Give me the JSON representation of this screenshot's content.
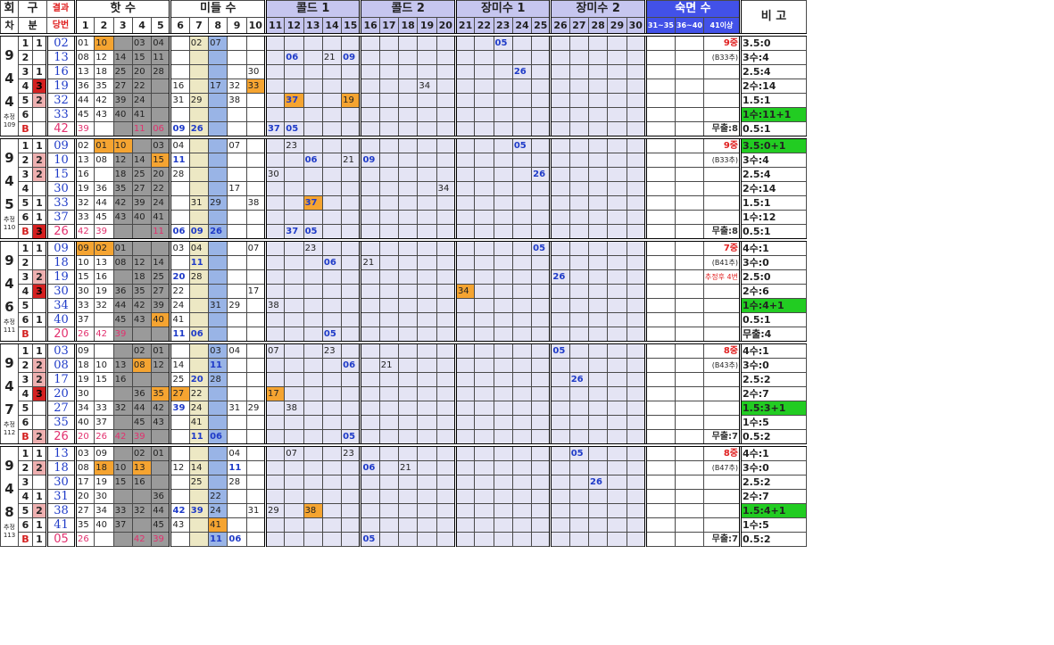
{
  "header": {
    "round": [
      "회",
      "차"
    ],
    "section": [
      "구",
      "분"
    ],
    "result": [
      "결과",
      "당번"
    ],
    "groups": [
      "핫 수",
      "미들 수",
      "콜드 1",
      "콜드 2",
      "장미수 1",
      "장미수 2",
      "숙면 수"
    ],
    "remark": "비 고",
    "cols": [
      "1",
      "2",
      "3",
      "4",
      "5",
      "6",
      "7",
      "8",
      "9",
      "10",
      "11",
      "12",
      "13",
      "14",
      "15",
      "16",
      "17",
      "18",
      "19",
      "20",
      "21",
      "22",
      "23",
      "24",
      "25",
      "26",
      "27",
      "28",
      "29",
      "30",
      "31~35",
      "36~40",
      "41이상"
    ]
  },
  "blocks": [
    {
      "round": [
        "9",
        "4",
        "4"
      ],
      "round_note": [
        "추정",
        "109"
      ],
      "rows": [
        {
          "n": "1",
          "s": "1",
          "a": "02",
          "c": {
            "1": "01",
            "2": "10",
            "4": "03",
            "5": "04",
            "7": "02",
            "8": "07",
            "23": "05"
          },
          "r": "9중",
          "v": "3.5:0"
        },
        {
          "n": "2",
          "s": "",
          "a": "13",
          "c": {
            "1": "08",
            "2": "12",
            "3": "14",
            "4": "15",
            "5": "11",
            "12": "06",
            "14": "21",
            "15": "09"
          },
          "r": "(B33추)",
          "v": "3수:4"
        },
        {
          "n": "3",
          "s": "1",
          "a": "16",
          "c": {
            "1": "13",
            "2": "18",
            "3": "25",
            "4": "20",
            "5": "28",
            "10": "30",
            "24": "26"
          },
          "r": "",
          "v": "2.5:4"
        },
        {
          "n": "4",
          "s": "3",
          "a": "19",
          "c": {
            "1": "36",
            "2": "35",
            "3": "27",
            "4": "22",
            "6": "16",
            "8": "17",
            "9": "32",
            "10": "33",
            "19": "34"
          },
          "r": "",
          "v": "2수:14"
        },
        {
          "n": "5",
          "s": "2",
          "a": "32",
          "c": {
            "1": "44",
            "2": "42",
            "3": "39",
            "4": "24",
            "6": "31",
            "7": "29",
            "9": "38",
            "12": "37",
            "15": "19"
          },
          "r": "",
          "v": "1.5:1"
        },
        {
          "n": "6",
          "s": "",
          "a": "33",
          "c": {
            "1": "45",
            "2": "43",
            "3": "40",
            "4": "41"
          },
          "r": "",
          "v": "1수:11+1"
        },
        {
          "n": "B",
          "s": "",
          "a": "42",
          "c": {
            "1": "39",
            "4": "11",
            "5": "06",
            "6": "09",
            "7": "26",
            "11": "37",
            "12": "05"
          },
          "r": "무출:8",
          "v": "0.5:1"
        }
      ]
    },
    {
      "round": [
        "9",
        "4",
        "5"
      ],
      "round_note": [
        "추정",
        "110"
      ],
      "rows": [
        {
          "n": "1",
          "s": "1",
          "a": "09",
          "c": {
            "1": "02",
            "2": "01",
            "3": "10",
            "5": "03",
            "6": "04",
            "9": "07",
            "12": "23",
            "24": "05"
          },
          "r": "9중",
          "v": "3.5:0+1"
        },
        {
          "n": "2",
          "s": "2",
          "a": "10",
          "c": {
            "1": "13",
            "2": "08",
            "3": "12",
            "4": "14",
            "5": "15",
            "6": "11",
            "13": "06",
            "15": "21",
            "16": "09"
          },
          "r": "(B33추)",
          "v": "3수:4"
        },
        {
          "n": "3",
          "s": "2",
          "a": "15",
          "c": {
            "1": "16",
            "3": "18",
            "4": "25",
            "5": "20",
            "6": "28",
            "11": "30",
            "25": "26"
          },
          "r": "",
          "v": "2.5:4"
        },
        {
          "n": "4",
          "s": "",
          "a": "30",
          "c": {
            "1": "19",
            "2": "36",
            "3": "35",
            "4": "27",
            "5": "22",
            "9": "17",
            "20": "34"
          },
          "r": "",
          "v": "2수:14"
        },
        {
          "n": "5",
          "s": "1",
          "a": "33",
          "c": {
            "1": "32",
            "2": "44",
            "3": "42",
            "4": "39",
            "5": "24",
            "7": "31",
            "8": "29",
            "10": "38",
            "13": "37"
          },
          "r": "",
          "v": "1.5:1"
        },
        {
          "n": "6",
          "s": "1",
          "a": "37",
          "c": {
            "1": "33",
            "2": "45",
            "3": "43",
            "4": "40",
            "5": "41"
          },
          "r": "",
          "v": "1수:12"
        },
        {
          "n": "B",
          "s": "3",
          "a": "26",
          "c": {
            "1": "42",
            "2": "39",
            "5": "11",
            "6": "06",
            "7": "09",
            "8": "26",
            "12": "37",
            "13": "05"
          },
          "r": "무출:8",
          "v": "0.5:1"
        }
      ]
    },
    {
      "round": [
        "9",
        "4",
        "6"
      ],
      "round_note": [
        "추정",
        "111"
      ],
      "rows": [
        {
          "n": "1",
          "s": "1",
          "a": "09",
          "c": {
            "1": "09",
            "2": "02",
            "3": "01",
            "6": "03",
            "7": "04",
            "10": "07",
            "13": "23",
            "25": "05"
          },
          "r": "7중",
          "v": "4수:1"
        },
        {
          "n": "2",
          "s": "",
          "a": "18",
          "c": {
            "1": "10",
            "2": "13",
            "3": "08",
            "4": "12",
            "5": "14",
            "7": "11",
            "14": "06",
            "16": "21"
          },
          "r": "(B41추)",
          "v": "3수:0"
        },
        {
          "n": "3",
          "s": "2",
          "a": "19",
          "c": {
            "1": "15",
            "2": "16",
            "4": "18",
            "5": "25",
            "6": "20",
            "7": "28",
            "26": "26"
          },
          "r": "추정후 4번",
          "v": "2.5:0"
        },
        {
          "n": "4",
          "s": "3",
          "a": "30",
          "c": {
            "1": "30",
            "2": "19",
            "3": "36",
            "4": "35",
            "5": "27",
            "6": "22",
            "10": "17",
            "21": "34"
          },
          "r": "",
          "v": "2수:6"
        },
        {
          "n": "5",
          "s": "",
          "a": "34",
          "c": {
            "1": "33",
            "2": "32",
            "3": "44",
            "4": "42",
            "5": "39",
            "6": "24",
            "8": "31",
            "9": "29",
            "11": "38"
          },
          "r": "",
          "v": "1수:4+1"
        },
        {
          "n": "6",
          "s": "1",
          "a": "40",
          "c": {
            "1": "37",
            "3": "45",
            "4": "43",
            "5": "40",
            "6": "41"
          },
          "r": "",
          "v": "0.5:1"
        },
        {
          "n": "B",
          "s": "",
          "a": "20",
          "c": {
            "1": "26",
            "2": "42",
            "3": "39",
            "6": "11",
            "7": "06",
            "14": "05"
          },
          "r": "",
          "v": "무출:4"
        }
      ]
    },
    {
      "round": [
        "9",
        "4",
        "7"
      ],
      "round_note": [
        "추정",
        "112"
      ],
      "rows": [
        {
          "n": "1",
          "s": "1",
          "a": "03",
          "c": {
            "1": "09",
            "4": "02",
            "5": "01",
            "8": "03",
            "9": "04",
            "11": "07",
            "14": "23",
            "26": "05"
          },
          "r": "8중",
          "v": "4수:1"
        },
        {
          "n": "2",
          "s": "2",
          "a": "08",
          "c": {
            "1": "18",
            "2": "10",
            "3": "13",
            "4": "08",
            "5": "12",
            "6": "14",
            "8": "11",
            "15": "06",
            "17": "21"
          },
          "r": "(B43추)",
          "v": "3수:0"
        },
        {
          "n": "3",
          "s": "2",
          "a": "17",
          "c": {
            "1": "19",
            "2": "15",
            "3": "16",
            "6": "25",
            "7": "20",
            "8": "28",
            "27": "26"
          },
          "r": "",
          "v": "2.5:2"
        },
        {
          "n": "4",
          "s": "3",
          "a": "20",
          "c": {
            "1": "30",
            "4": "36",
            "5": "35",
            "6": "27",
            "7": "22",
            "11": "17"
          },
          "r": "",
          "v": "2수:7"
        },
        {
          "n": "5",
          "s": "",
          "a": "27",
          "c": {
            "1": "34",
            "2": "33",
            "3": "32",
            "4": "44",
            "5": "42",
            "6": "39",
            "7": "24",
            "9": "31",
            "10": "29",
            "12": "38"
          },
          "r": "",
          "v": "1.5:3+1"
        },
        {
          "n": "6",
          "s": "",
          "a": "35",
          "c": {
            "1": "40",
            "2": "37",
            "4": "45",
            "5": "43",
            "7": "41"
          },
          "r": "",
          "v": "1수:5"
        },
        {
          "n": "B",
          "s": "2",
          "a": "26",
          "c": {
            "1": "20",
            "2": "26",
            "3": "42",
            "4": "39",
            "7": "11",
            "8": "06",
            "15": "05"
          },
          "r": "무출:7",
          "v": "0.5:2"
        }
      ]
    },
    {
      "round": [
        "9",
        "4",
        "8"
      ],
      "round_note": [
        "추정",
        "113"
      ],
      "rows": [
        {
          "n": "1",
          "s": "1",
          "a": "13",
          "c": {
            "1": "03",
            "2": "09",
            "4": "02",
            "5": "01",
            "9": "04",
            "12": "07",
            "15": "23",
            "27": "05"
          },
          "r": "8중",
          "v": "4수:1"
        },
        {
          "n": "2",
          "s": "2",
          "a": "18",
          "c": {
            "1": "08",
            "2": "18",
            "3": "10",
            "4": "13",
            "6": "12",
            "7": "14",
            "9": "11",
            "16": "06",
            "18": "21"
          },
          "r": "(B47추)",
          "v": "3수:0"
        },
        {
          "n": "3",
          "s": "",
          "a": "30",
          "c": {
            "1": "17",
            "2": "19",
            "3": "15",
            "4": "16",
            "7": "25",
            "9": "28",
            "28": "26"
          },
          "r": "",
          "v": "2.5:2"
        },
        {
          "n": "4",
          "s": "1",
          "a": "31",
          "c": {
            "1": "20",
            "2": "30",
            "5": "36",
            "8": "22"
          },
          "r": "",
          "v": "2수:7"
        },
        {
          "n": "5",
          "s": "2",
          "a": "38",
          "c": {
            "1": "27",
            "2": "34",
            "3": "33",
            "4": "32",
            "5": "44",
            "6": "42",
            "7": "39",
            "8": "24",
            "10": "31",
            "11": "29",
            "13": "38"
          },
          "r": "",
          "v": "1.5:4+1"
        },
        {
          "n": "6",
          "s": "1",
          "a": "41",
          "c": {
            "1": "35",
            "2": "40",
            "3": "37",
            "5": "45",
            "6": "43",
            "8": "41"
          },
          "r": "",
          "v": "1수:5"
        },
        {
          "n": "B",
          "s": "1",
          "a": "05",
          "c": {
            "1": "26",
            "4": "42",
            "5": "39",
            "8": "11",
            "9": "06",
            "16": "05"
          },
          "r": "무출:7",
          "v": "0.5:2"
        }
      ]
    }
  ],
  "colors": {
    "grey_col": "#9a9a9a",
    "blue_col": "#99b4e6",
    "khaki_col": "#ede8c4",
    "light_purple": "#e4e4f4",
    "orange": "#f5a431",
    "cyan": "#2fd4e6",
    "green_badge": "#22cc22",
    "section_red": "#d42020",
    "round_header": "#c6c6ef",
    "dark_blue": "#4251e8"
  }
}
